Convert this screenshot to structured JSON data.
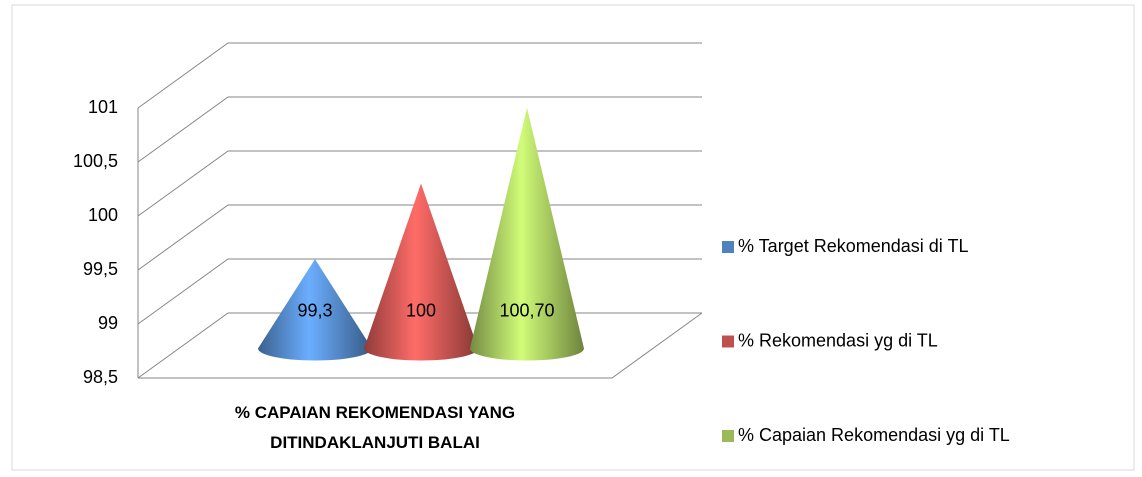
{
  "chart_data": {
    "type": "cone",
    "categories": [
      "% CAPAIAN REKOMENDASI YANG DITINDAKLANJUTI BALAI"
    ],
    "series": [
      {
        "name": "% Target Rekomendasi di TL",
        "color": "#4f81bd",
        "values": [
          99.3
        ],
        "value_labels": [
          "99,3"
        ]
      },
      {
        "name": "% Rekomendasi yg di TL",
        "color": "#c0504d",
        "values": [
          100
        ],
        "value_labels": [
          "100"
        ]
      },
      {
        "name": "% Capaian Rekomendasi yg di TL",
        "color": "#9bbb59",
        "values": [
          100.7
        ],
        "value_labels": [
          "100,70"
        ]
      }
    ],
    "ylim": [
      98.5,
      101
    ],
    "yticks": [
      {
        "value": 98.5,
        "label": "98,5"
      },
      99,
      {
        "value": 99.5,
        "label": "99,5"
      },
      100,
      {
        "value": 100.5,
        "label": "100,5"
      },
      101
    ],
    "grid": true,
    "legend": "right"
  }
}
